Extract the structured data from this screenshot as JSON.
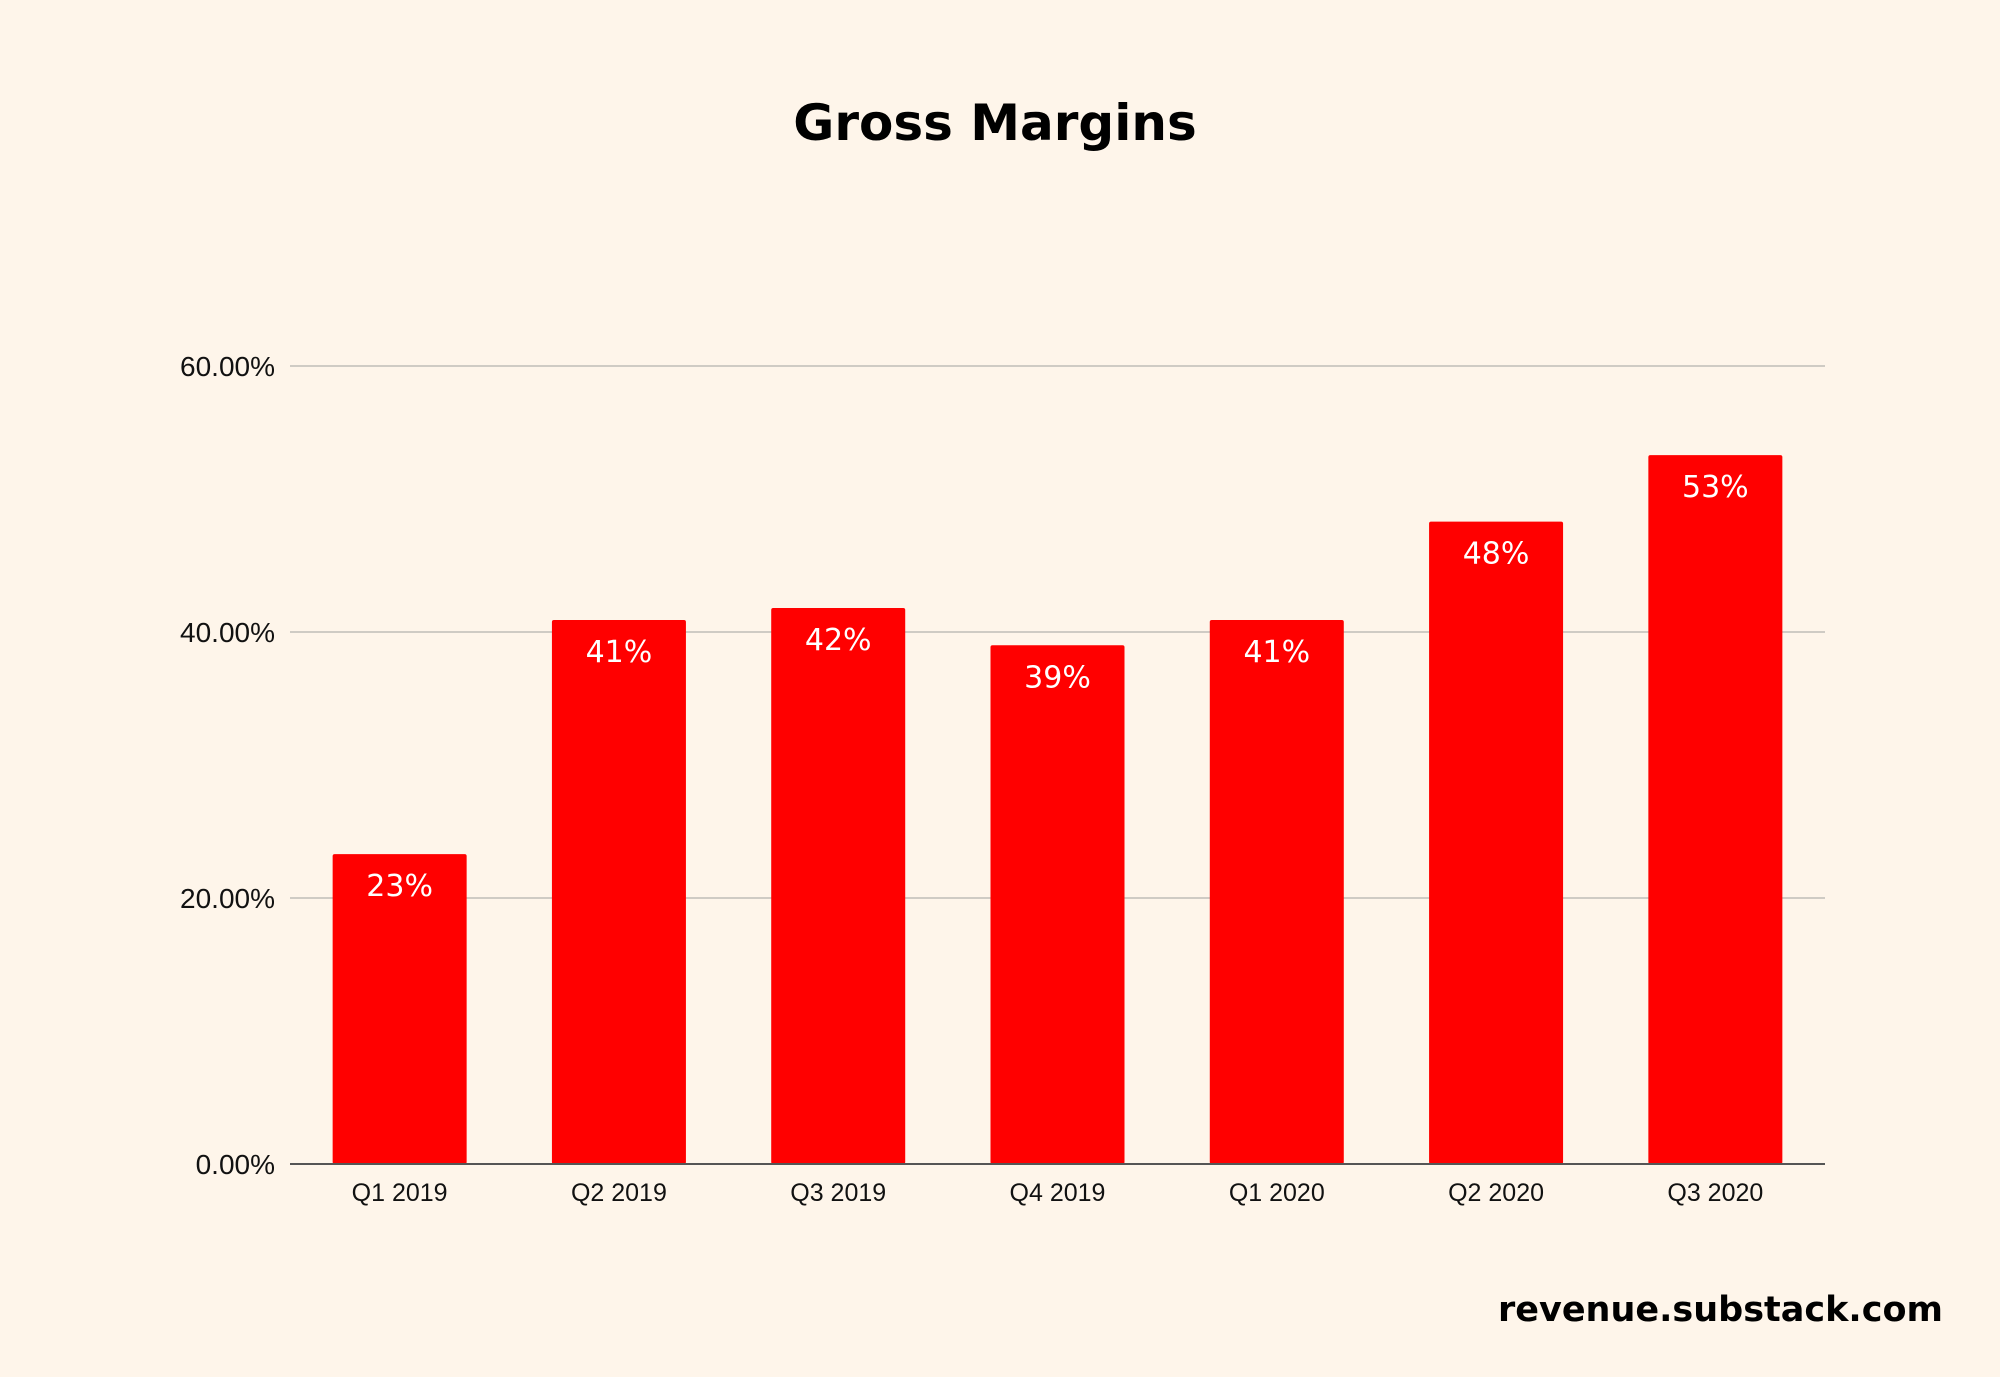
{
  "colors": {
    "background": "#FEF5EA",
    "bar": "#FF0000",
    "bar_label": "#FFFFFF",
    "gridline": "#CFCBC4",
    "baseline": "#555555",
    "text": "#000000"
  },
  "chart_data": {
    "type": "bar",
    "title": "Gross Margins",
    "xlabel": "",
    "ylabel": "",
    "categories": [
      "Q1 2019",
      "Q2 2019",
      "Q3 2019",
      "Q4 2019",
      "Q1 2020",
      "Q2 2020",
      "Q3 2020"
    ],
    "values": [
      23.3,
      40.9,
      41.8,
      39.0,
      40.9,
      48.3,
      53.3
    ],
    "data_labels": [
      "23%",
      "41%",
      "42%",
      "39%",
      "41%",
      "48%",
      "53%"
    ],
    "ylim": [
      0,
      60
    ],
    "yticks": [
      0,
      20,
      40,
      60
    ],
    "ytick_labels": [
      "0.00%",
      "20.00%",
      "40.00%",
      "60.00%"
    ],
    "grid": true,
    "legend": "none"
  },
  "watermark": "revenue.substack.com"
}
